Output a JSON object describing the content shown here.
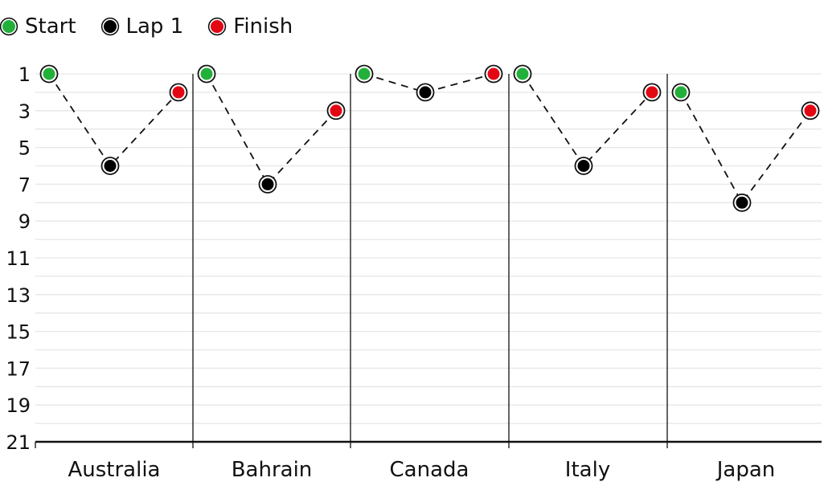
{
  "chart_data": {
    "type": "scatter",
    "categories": [
      "Australia",
      "Bahrain",
      "Canada",
      "Italy",
      "Japan"
    ],
    "y_ticks": [
      1,
      3,
      5,
      7,
      9,
      11,
      13,
      15,
      17,
      19,
      21
    ],
    "ylim": [
      1,
      21
    ],
    "y_inverted": true,
    "grid": true,
    "legend_position": "top-left",
    "series": [
      {
        "name": "Start",
        "color": "#22b03a",
        "values": [
          1,
          1,
          1,
          1,
          2
        ]
      },
      {
        "name": "Lap 1",
        "color": "#000000",
        "values": [
          6,
          7,
          2,
          6,
          8
        ]
      },
      {
        "name": "Finish",
        "color": "#e30613",
        "values": [
          2,
          3,
          1,
          2,
          3
        ]
      }
    ]
  }
}
